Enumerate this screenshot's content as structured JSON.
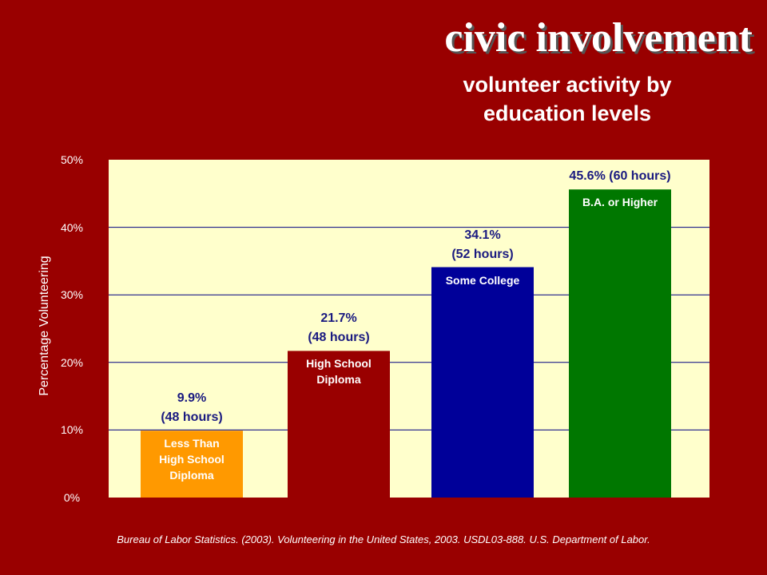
{
  "chart_data": {
    "type": "bar",
    "title": "civic involvement",
    "subtitle": "volunteer activity by\neducation levels",
    "y_label": "Percentage Volunteering",
    "source": "Bureau of Labor Statistics.  (2003).  Volunteering in the United States, 2003.  USDL03-888.  U.S. Department of Labor.",
    "categories": [
      "Less Than\nHigh School\nDiploma",
      "High School\nDiploma",
      "Some College",
      "B.A. or Higher"
    ],
    "values": [
      9.9,
      21.7,
      34.1,
      45.6
    ],
    "value_labels": [
      "9.9%\n(48 hours)",
      "21.7%\n(48 hours)",
      "34.1%\n(52 hours)",
      "45.6% (60 hours)"
    ],
    "colors": [
      "#ff9900",
      "#990000",
      "#000099",
      "#007700"
    ],
    "ylim": [
      0,
      50
    ],
    "yticks": [
      {
        "value": 0,
        "label": "0%"
      },
      {
        "value": 10,
        "label": "10%"
      },
      {
        "value": 20,
        "label": "20%"
      },
      {
        "value": 30,
        "label": "30%"
      },
      {
        "value": 40,
        "label": "40%"
      },
      {
        "value": 50,
        "label": "50%"
      }
    ],
    "grid": true,
    "plot_background": "#ffffcc"
  }
}
